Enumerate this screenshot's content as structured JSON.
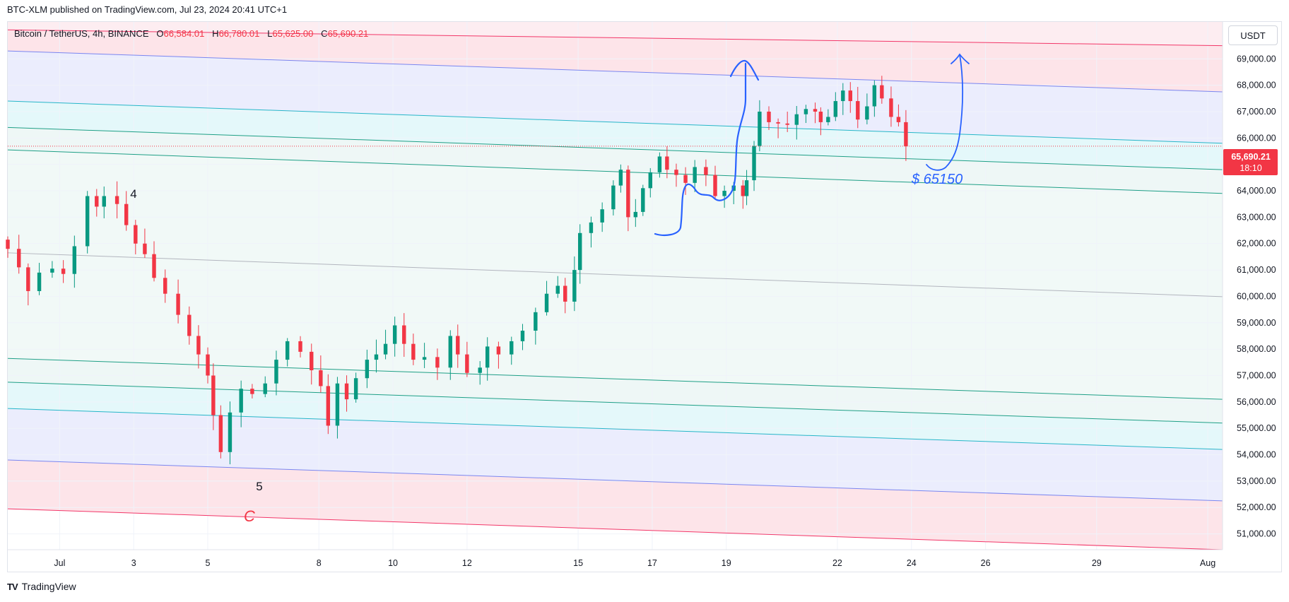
{
  "header": {
    "text": "BTC-XLM published on TradingView.com, Jul 23, 2024 20:41 UTC+1"
  },
  "legend": {
    "symbol": "Bitcoin / TetherUS, 4h, BINANCE",
    "o_label": "O",
    "o_value": "66,584.01",
    "h_label": "H",
    "h_value": "66,780.01",
    "l_label": "L",
    "l_value": "65,625.00",
    "c_label": "C",
    "c_value": "65,690.21"
  },
  "currency_button": "USDT",
  "price_badge": {
    "price": "65,690.21",
    "countdown": "18:10"
  },
  "annotations": {
    "wave4": "4",
    "wave5": "5",
    "waveC": "C",
    "target": "$ 65150"
  },
  "footer": {
    "logo": "TV",
    "brand": "TradingView"
  },
  "colors": {
    "up": "#089981",
    "down": "#f23645",
    "outer_band": "#f7a6b7",
    "blue_band": "#b7bdf7",
    "cyan_band": "#9fe6ec",
    "drawing": "#2962ff"
  },
  "chart_data": {
    "type": "candlestick",
    "title": "Bitcoin / TetherUS, 4h, BINANCE",
    "ylim": [
      50400,
      70400
    ],
    "yticks": [
      51000,
      52000,
      53000,
      54000,
      55000,
      56000,
      57000,
      58000,
      59000,
      60000,
      61000,
      62000,
      63000,
      64000,
      65000,
      66000,
      67000,
      68000,
      69000
    ],
    "ytick_labels": [
      "51,000.00",
      "52,000.00",
      "53,000.00",
      "54,000.00",
      "55,000.00",
      "56,000.00",
      "57,000.00",
      "58,000.00",
      "59,000.00",
      "60,000.00",
      "61,000.00",
      "62,000.00",
      "63,000.00",
      "64,000.00",
      "65,000.00",
      "66,000.00",
      "67,000.00",
      "68,000.00",
      "69,000.00"
    ],
    "x_domain_days": [
      -1.4,
      31.4
    ],
    "xticks": [
      {
        "day": 0,
        "label": "Jul"
      },
      {
        "day": 2,
        "label": "3"
      },
      {
        "day": 4,
        "label": "5"
      },
      {
        "day": 7,
        "label": "8"
      },
      {
        "day": 9,
        "label": "10"
      },
      {
        "day": 11,
        "label": "12"
      },
      {
        "day": 14,
        "label": "15"
      },
      {
        "day": 16,
        "label": "17"
      },
      {
        "day": 18,
        "label": "19"
      },
      {
        "day": 21,
        "label": "22"
      },
      {
        "day": 23,
        "label": "24"
      },
      {
        "day": 25,
        "label": "26"
      },
      {
        "day": 28,
        "label": "29"
      },
      {
        "day": 31,
        "label": "Aug"
      }
    ],
    "grid": true,
    "last_price": 65690.21,
    "channel_lines": [
      {
        "name": "outer-top",
        "start": 70100,
        "end": 69500,
        "band": "outer_band"
      },
      {
        "name": "blue-top",
        "start": 69300,
        "end": 67750,
        "band": "blue_band"
      },
      {
        "name": "cyan-top",
        "start": 67400,
        "end": 65800,
        "band": "cyan_band"
      },
      {
        "name": "green-top",
        "start": 66400,
        "end": 64800,
        "band": "cyan_band"
      },
      {
        "name": "green-top-2",
        "start": 65550,
        "end": 63900,
        "band": "cyan_band"
      },
      {
        "name": "mid",
        "start": 61650,
        "end": 59990,
        "band": "none"
      },
      {
        "name": "green-bot-2",
        "start": 57650,
        "end": 56100,
        "band": "cyan_band"
      },
      {
        "name": "green-bot",
        "start": 56750,
        "end": 55200,
        "band": "cyan_band"
      },
      {
        "name": "cyan-bot",
        "start": 55750,
        "end": 54200,
        "band": "cyan_band"
      },
      {
        "name": "blue-bot",
        "start": 53800,
        "end": 52250,
        "band": "blue_band"
      },
      {
        "name": "outer-bot",
        "start": 51950,
        "end": 50400,
        "band": "outer_band"
      }
    ],
    "candle_points": [
      [
        -1.4,
        61800
      ],
      [
        -1.1,
        61100
      ],
      [
        -0.85,
        60200
      ],
      [
        -0.55,
        60900
      ],
      [
        -0.2,
        61050
      ],
      [
        0.1,
        60850
      ],
      [
        0.4,
        61900
      ],
      [
        0.75,
        63800
      ],
      [
        1.0,
        63400
      ],
      [
        1.2,
        63800
      ],
      [
        1.55,
        63500
      ],
      [
        1.8,
        62700
      ],
      [
        2.05,
        62000
      ],
      [
        2.3,
        61600
      ],
      [
        2.55,
        60700
      ],
      [
        2.85,
        60100
      ],
      [
        3.2,
        59300
      ],
      [
        3.5,
        58500
      ],
      [
        3.75,
        57800
      ],
      [
        4.0,
        57000
      ],
      [
        4.15,
        55500
      ],
      [
        4.35,
        54100
      ],
      [
        4.6,
        55600
      ],
      [
        4.9,
        56500
      ],
      [
        5.2,
        56300
      ],
      [
        5.55,
        56700
      ],
      [
        5.85,
        57600
      ],
      [
        6.15,
        58300
      ],
      [
        6.5,
        57900
      ],
      [
        6.8,
        57200
      ],
      [
        7.05,
        56600
      ],
      [
        7.25,
        55100
      ],
      [
        7.5,
        56700
      ],
      [
        7.75,
        56100
      ],
      [
        8.0,
        56900
      ],
      [
        8.3,
        57600
      ],
      [
        8.55,
        57800
      ],
      [
        8.8,
        58200
      ],
      [
        9.05,
        58900
      ],
      [
        9.3,
        58200
      ],
      [
        9.55,
        57600
      ],
      [
        9.85,
        57700
      ],
      [
        10.2,
        57300
      ],
      [
        10.55,
        58500
      ],
      [
        10.75,
        57800
      ],
      [
        11.0,
        57100
      ],
      [
        11.35,
        57300
      ],
      [
        11.55,
        58100
      ],
      [
        11.85,
        57800
      ],
      [
        12.2,
        58300
      ],
      [
        12.5,
        58700
      ],
      [
        12.85,
        59400
      ],
      [
        13.15,
        60100
      ],
      [
        13.45,
        60400
      ],
      [
        13.65,
        59800
      ],
      [
        13.9,
        61000
      ],
      [
        14.05,
        62400
      ],
      [
        14.35,
        62800
      ],
      [
        14.65,
        63300
      ],
      [
        14.95,
        64200
      ],
      [
        15.15,
        64800
      ],
      [
        15.35,
        63000
      ],
      [
        15.55,
        63200
      ],
      [
        15.75,
        64100
      ],
      [
        15.95,
        64700
      ],
      [
        16.2,
        65300
      ],
      [
        16.4,
        64800
      ],
      [
        16.65,
        64600
      ],
      [
        16.9,
        64300
      ],
      [
        17.15,
        64900
      ],
      [
        17.45,
        64600
      ],
      [
        17.7,
        63800
      ],
      [
        17.95,
        64000
      ],
      [
        18.2,
        64200
      ],
      [
        18.45,
        63800
      ],
      [
        18.55,
        64400
      ],
      [
        18.75,
        65700
      ],
      [
        18.9,
        67000
      ],
      [
        19.15,
        66600
      ],
      [
        19.4,
        66550
      ],
      [
        19.65,
        66500
      ],
      [
        19.9,
        66900
      ],
      [
        20.15,
        67100
      ],
      [
        20.4,
        67000
      ],
      [
        20.55,
        66600
      ],
      [
        20.75,
        66800
      ],
      [
        20.95,
        67400
      ],
      [
        21.15,
        67800
      ],
      [
        21.35,
        67400
      ],
      [
        21.55,
        66700
      ],
      [
        21.8,
        67200
      ],
      [
        22.0,
        68000
      ],
      [
        22.2,
        67500
      ],
      [
        22.45,
        66800
      ],
      [
        22.65,
        66600
      ],
      [
        22.85,
        65690
      ]
    ],
    "channel_band_fills": true
  }
}
